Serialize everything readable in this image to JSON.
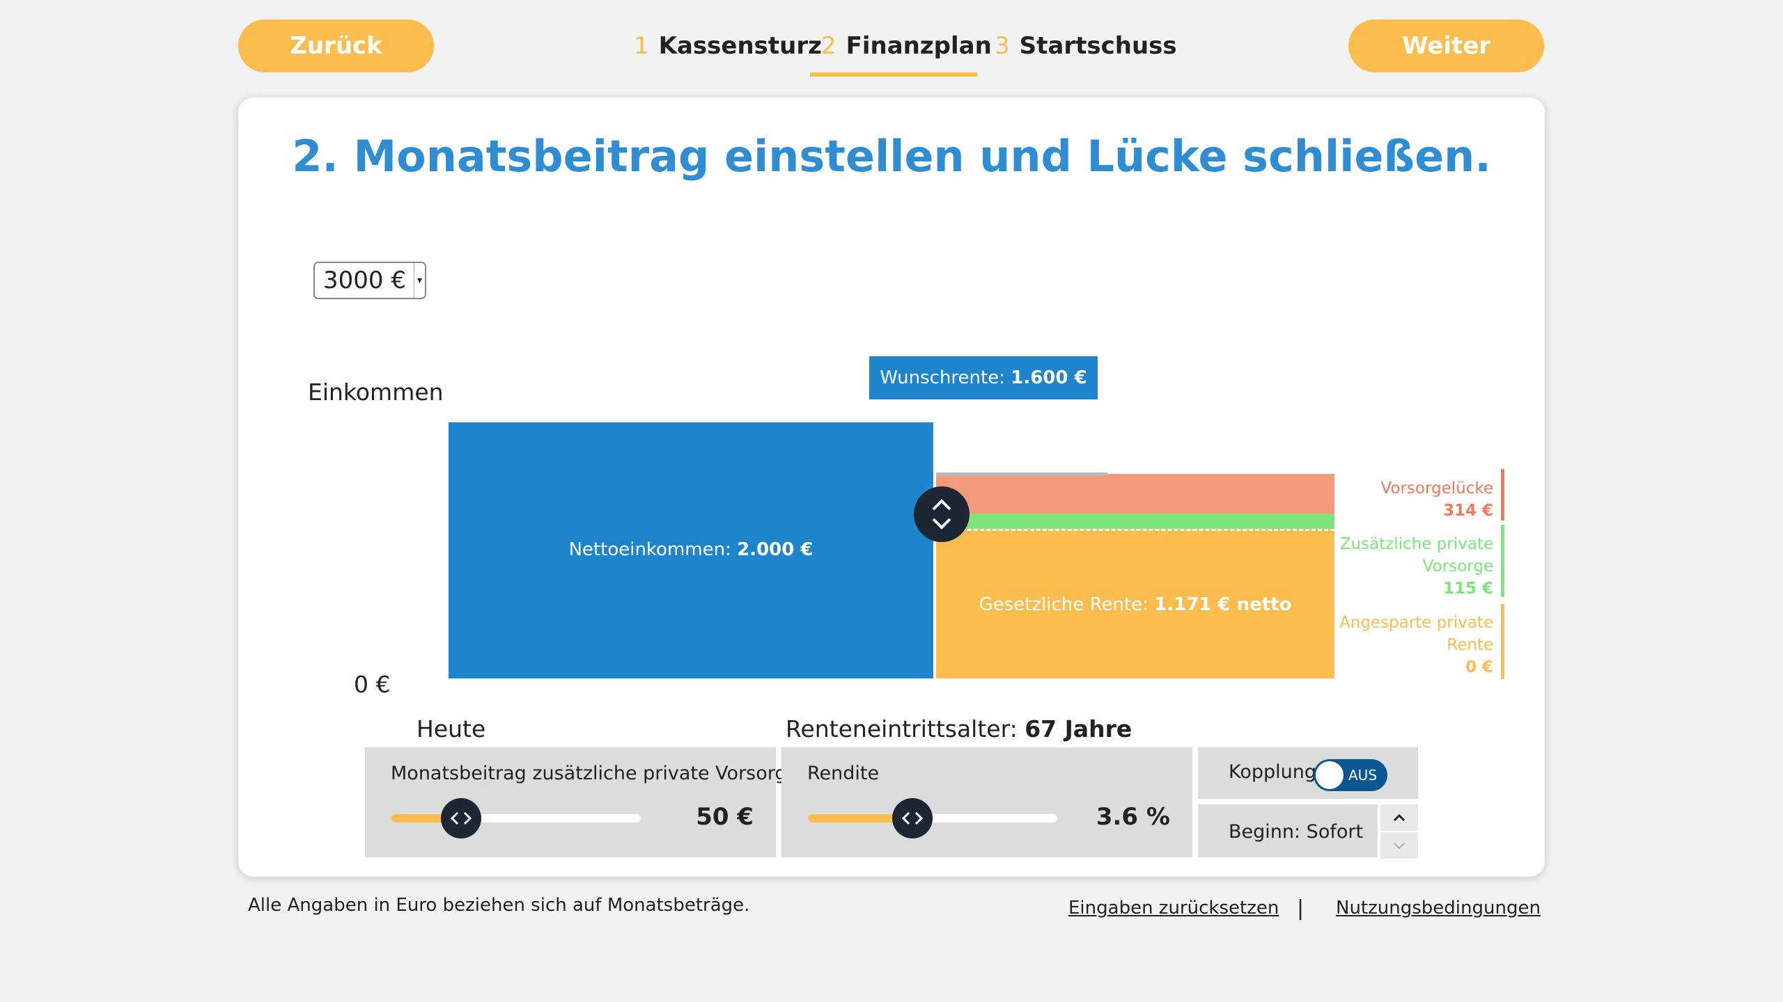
{
  "nav": {
    "back_label": "Zurück",
    "next_label": "Weiter"
  },
  "steps": [
    {
      "num": "1",
      "label": "Kassensturz",
      "active": false
    },
    {
      "num": "2",
      "label": "Finanzplan",
      "active": true
    },
    {
      "num": "3",
      "label": "Startschuss",
      "active": false
    }
  ],
  "page": {
    "title": "2. Monatsbeitrag einstellen und Lücke schließen."
  },
  "income_select": {
    "value": "3000 €"
  },
  "chart_data": {
    "type": "bar",
    "ylabel": "Einkommen",
    "y_zero_label": "0 €",
    "x_labels": {
      "today": "Heute",
      "retirement_prefix": "Renteneintrittsalter:",
      "retirement_value": "67 Jahre"
    },
    "net_income": {
      "label": "Nettoeinkommen:",
      "value_label": "2.000 €",
      "value": 2000
    },
    "retirement_stack": [
      {
        "name": "Angesparte private Rente",
        "value": 0,
        "color": "#fbbd4d"
      },
      {
        "name": "Gesetzliche Rente",
        "label": "Gesetzliche Rente:",
        "value_label": "1.171 € netto",
        "value": 1171,
        "color": "#fbbd4d"
      },
      {
        "name": "Zusätzliche private Vorsorge",
        "value": 115,
        "color": "#7de57b"
      },
      {
        "name": "Vorsorgelücke",
        "value": 314,
        "color": "#f29b7c"
      }
    ],
    "wish_pension": {
      "label": "Wunschrente:",
      "value_label": "1.600 €",
      "value": 1600
    },
    "legend": [
      {
        "title_line1": "Vorsorgelücke",
        "title_line2": "",
        "value": "314 €",
        "color": "#f07b5a"
      },
      {
        "title_line1": "Zusätzliche private",
        "title_line2": "Vorsorge",
        "value": "115 €",
        "color": "#7de57b"
      },
      {
        "title_line1": "Angesparte private",
        "title_line2": "Rente",
        "value": "0 €",
        "color": "#fbbd4d"
      }
    ]
  },
  "controls": {
    "contribution": {
      "label": "Monatsbeitrag zusätzliche private Vorsorge",
      "value": "50 €",
      "fraction": 0.28
    },
    "return": {
      "label": "Rendite",
      "value": "3.6 %",
      "fraction": 0.42
    },
    "coupling": {
      "label": "Kopplung",
      "toggle_text": "AUS"
    },
    "start": {
      "label": "Beginn: Sofort"
    }
  },
  "footer": {
    "note": "Alle Angaben in Euro beziehen sich auf Monatsbeträge.",
    "reset_link": "Eingaben zurücksetzen",
    "separator": "|",
    "terms_link": "Nutzungsbedingungen"
  },
  "icons": {
    "up_down": "chevron-up-down-icon",
    "left_right": "chevron-left-right-icon"
  }
}
